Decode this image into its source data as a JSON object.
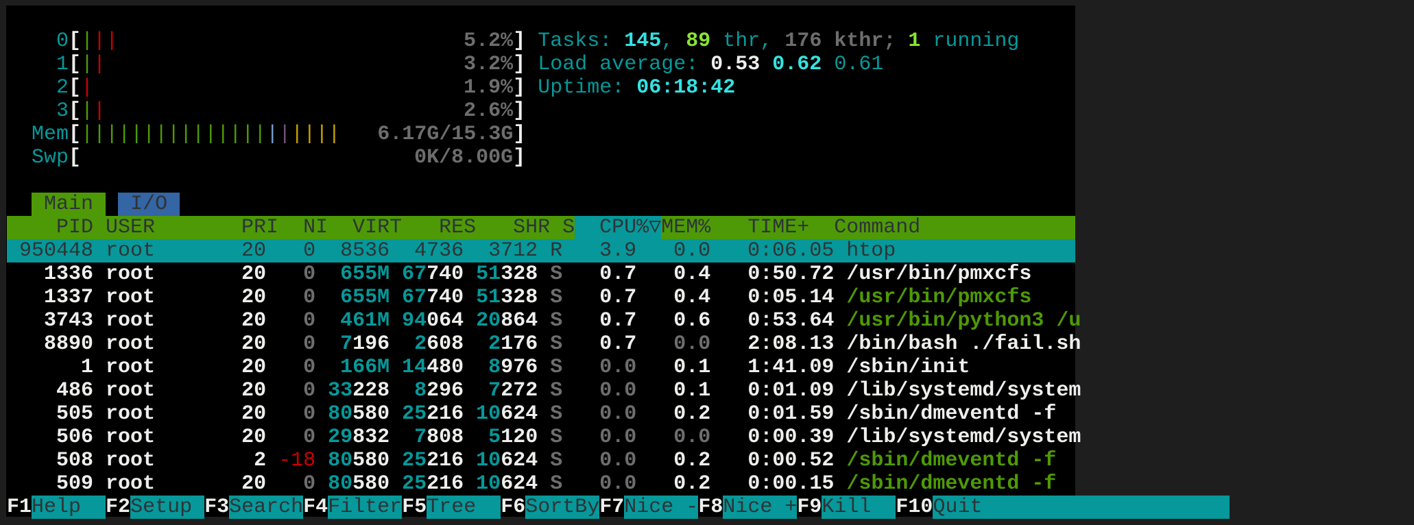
{
  "colors": {
    "green": "#4e9a06",
    "teal": "#06989a",
    "blue": "#3465a4",
    "red": "#cc0000",
    "cyan_bright": "#34e2e2",
    "green_bright": "#8ae234"
  },
  "meters": [
    {
      "label": "0",
      "bars": [
        "green",
        "red",
        "red"
      ],
      "value": "5.2%"
    },
    {
      "label": "1",
      "bars": [
        "green",
        "red"
      ],
      "value": "3.2%"
    },
    {
      "label": "2",
      "bars": [
        "red"
      ],
      "value": "1.9%"
    },
    {
      "label": "3",
      "bars": [
        "green",
        "red"
      ],
      "value": "2.6%"
    },
    {
      "label": "Mem",
      "bars": [
        "green",
        "green",
        "green",
        "green",
        "green",
        "green",
        "green",
        "green",
        "green",
        "green",
        "green",
        "green",
        "green",
        "green",
        "green",
        "blue",
        "magenta",
        "yellow",
        "yellow",
        "yellow",
        "yellow"
      ],
      "value": "6.17G/15.3G"
    },
    {
      "label": "Swp",
      "bars": [],
      "value": "0K/8.00G"
    }
  ],
  "summary": {
    "tasks_label": "Tasks: ",
    "tasks": "145",
    "sep1": ", ",
    "threads": "89",
    "thr_label": " thr, ",
    "kthreads": "176",
    "kthr_label": " kthr; ",
    "running": "1",
    "running_label": " running",
    "load_label": "Load average: ",
    "load1": "0.53",
    "load5": "0.62",
    "load15": "0.61",
    "uptime_label": "Uptime: ",
    "uptime": "06:18:42"
  },
  "tabs": [
    {
      "label": "Main",
      "active": true
    },
    {
      "label": "I/O",
      "active": false
    }
  ],
  "columns": [
    "PID",
    "USER",
    "PRI",
    "NI",
    "VIRT",
    "RES",
    "SHR",
    "S",
    "CPU%",
    "▽",
    "MEM%",
    "TIME+",
    "Command"
  ],
  "sort_column": "CPU%",
  "processes": [
    {
      "pid": "950448",
      "user": "root",
      "pri": "20",
      "ni": "0",
      "virt": "8536",
      "res": "4736",
      "shr": "3712",
      "s": "R",
      "cpu": "3.9",
      "mem": "0.0",
      "time": "0:06.05",
      "command": "htop",
      "selected": true
    },
    {
      "pid": "1336",
      "user": "root",
      "pri": "20",
      "ni": "0",
      "virt": "655M",
      "res": "67740",
      "shr": "51328",
      "s": "S",
      "cpu": "0.7",
      "mem": "0.4",
      "time": "0:50.72",
      "command": "/usr/bin/pmxcfs",
      "thread": false
    },
    {
      "pid": "1337",
      "user": "root",
      "pri": "20",
      "ni": "0",
      "virt": "655M",
      "res": "67740",
      "shr": "51328",
      "s": "S",
      "cpu": "0.7",
      "mem": "0.4",
      "time": "0:05.14",
      "command": "/usr/bin/pmxcfs",
      "thread": true
    },
    {
      "pid": "3743",
      "user": "root",
      "pri": "20",
      "ni": "0",
      "virt": "461M",
      "res": "94064",
      "shr": "20864",
      "s": "S",
      "cpu": "0.7",
      "mem": "0.6",
      "time": "0:53.64",
      "command": "/usr/bin/python3 /u",
      "thread": true
    },
    {
      "pid": "8890",
      "user": "root",
      "pri": "20",
      "ni": "0",
      "virt": "7196",
      "res": "2608",
      "shr": "2176",
      "s": "S",
      "cpu": "0.7",
      "mem": "0.0",
      "time": "2:08.13",
      "command": "/bin/bash ./fail.sh",
      "thread": false
    },
    {
      "pid": "1",
      "user": "root",
      "pri": "20",
      "ni": "0",
      "virt": "166M",
      "res": "14480",
      "shr": "8976",
      "s": "S",
      "cpu": "0.0",
      "mem": "0.1",
      "time": "1:41.09",
      "command": "/sbin/init",
      "thread": false
    },
    {
      "pid": "486",
      "user": "root",
      "pri": "20",
      "ni": "0",
      "virt": "33228",
      "res": "8296",
      "shr": "7272",
      "s": "S",
      "cpu": "0.0",
      "mem": "0.1",
      "time": "0:01.09",
      "command": "/lib/systemd/system",
      "thread": false
    },
    {
      "pid": "505",
      "user": "root",
      "pri": "20",
      "ni": "0",
      "virt": "80580",
      "res": "25216",
      "shr": "10624",
      "s": "S",
      "cpu": "0.0",
      "mem": "0.2",
      "time": "0:01.59",
      "command": "/sbin/dmeventd -f",
      "thread": false
    },
    {
      "pid": "506",
      "user": "root",
      "pri": "20",
      "ni": "0",
      "virt": "29832",
      "res": "7808",
      "shr": "5120",
      "s": "S",
      "cpu": "0.0",
      "mem": "0.0",
      "time": "0:00.39",
      "command": "/lib/systemd/system",
      "thread": false
    },
    {
      "pid": "508",
      "user": "root",
      "pri": "2",
      "ni": "-18",
      "virt": "80580",
      "res": "25216",
      "shr": "10624",
      "s": "S",
      "cpu": "0.0",
      "mem": "0.2",
      "time": "0:00.52",
      "command": "/sbin/dmeventd -f",
      "thread": true
    },
    {
      "pid": "509",
      "user": "root",
      "pri": "20",
      "ni": "0",
      "virt": "80580",
      "res": "25216",
      "shr": "10624",
      "s": "S",
      "cpu": "0.0",
      "mem": "0.2",
      "time": "0:00.15",
      "command": "/sbin/dmeventd -f",
      "thread": true
    }
  ],
  "function_keys": [
    {
      "key": "F1",
      "label": "Help  "
    },
    {
      "key": "F2",
      "label": "Setup "
    },
    {
      "key": "F3",
      "label": "Search"
    },
    {
      "key": "F4",
      "label": "Filter"
    },
    {
      "key": "F5",
      "label": "Tree  "
    },
    {
      "key": "F6",
      "label": "SortBy"
    },
    {
      "key": "F7",
      "label": "Nice -"
    },
    {
      "key": "F8",
      "label": "Nice +"
    },
    {
      "key": "F9",
      "label": "Kill  "
    },
    {
      "key": "F10",
      "label": "Quit"
    }
  ]
}
